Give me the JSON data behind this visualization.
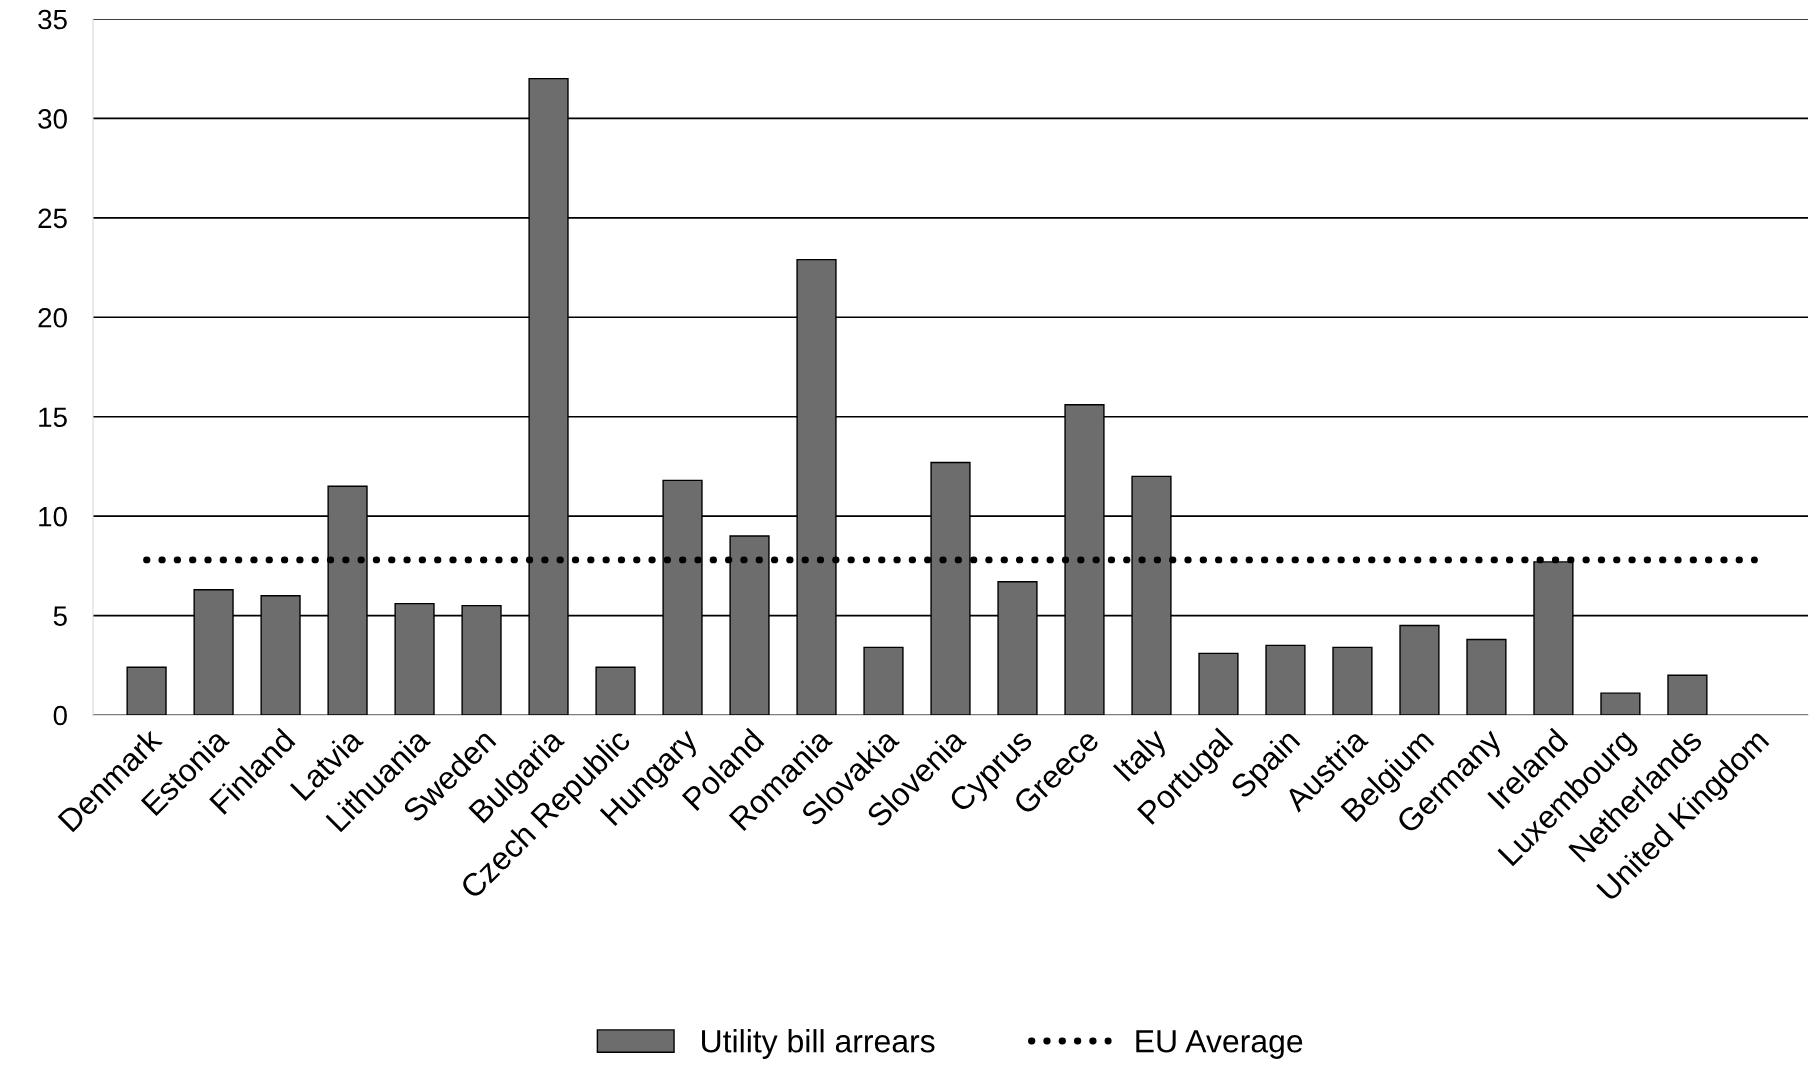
{
  "chart_data": {
    "type": "bar",
    "categories": [
      "Denmark",
      "Estonia",
      "Finland",
      "Latvia",
      "Lithuania",
      "Sweden",
      "Bulgaria",
      "Czech Republic",
      "Hungary",
      "Poland",
      "Romania",
      "Slovakia",
      "Slovenia",
      "Cyprus",
      "Greece",
      "Italy",
      "Portugal",
      "Spain",
      "Austria",
      "Belgium",
      "Germany",
      "Ireland",
      "Luxembourg",
      "Netherlands",
      "United Kingdom"
    ],
    "series": [
      {
        "name": "Utility bill arrears",
        "color": "#6d6d6d",
        "values": [
          2.4,
          6.3,
          6.0,
          11.5,
          5.6,
          5.5,
          32.0,
          2.4,
          11.8,
          9.0,
          22.9,
          3.4,
          12.7,
          6.7,
          15.6,
          12.0,
          3.1,
          3.5,
          3.4,
          4.5,
          3.8,
          7.7,
          1.1,
          2.0,
          null
        ]
      },
      {
        "name": "EU Average",
        "type": "line",
        "color": "#000000",
        "line_style": "dotted",
        "values": [
          7.8,
          7.8,
          7.8,
          7.8,
          7.8,
          7.8,
          7.8,
          7.8,
          7.8,
          7.8,
          7.8,
          7.8,
          7.8,
          7.8,
          7.8,
          7.8,
          7.8,
          7.8,
          7.8,
          7.8,
          7.8,
          7.8,
          7.8,
          7.8,
          7.8
        ]
      }
    ],
    "ylim": [
      0,
      35
    ],
    "yticks": [
      0,
      5,
      10,
      15,
      20,
      25,
      30,
      35
    ],
    "grid": "y",
    "legend": "bottom"
  }
}
